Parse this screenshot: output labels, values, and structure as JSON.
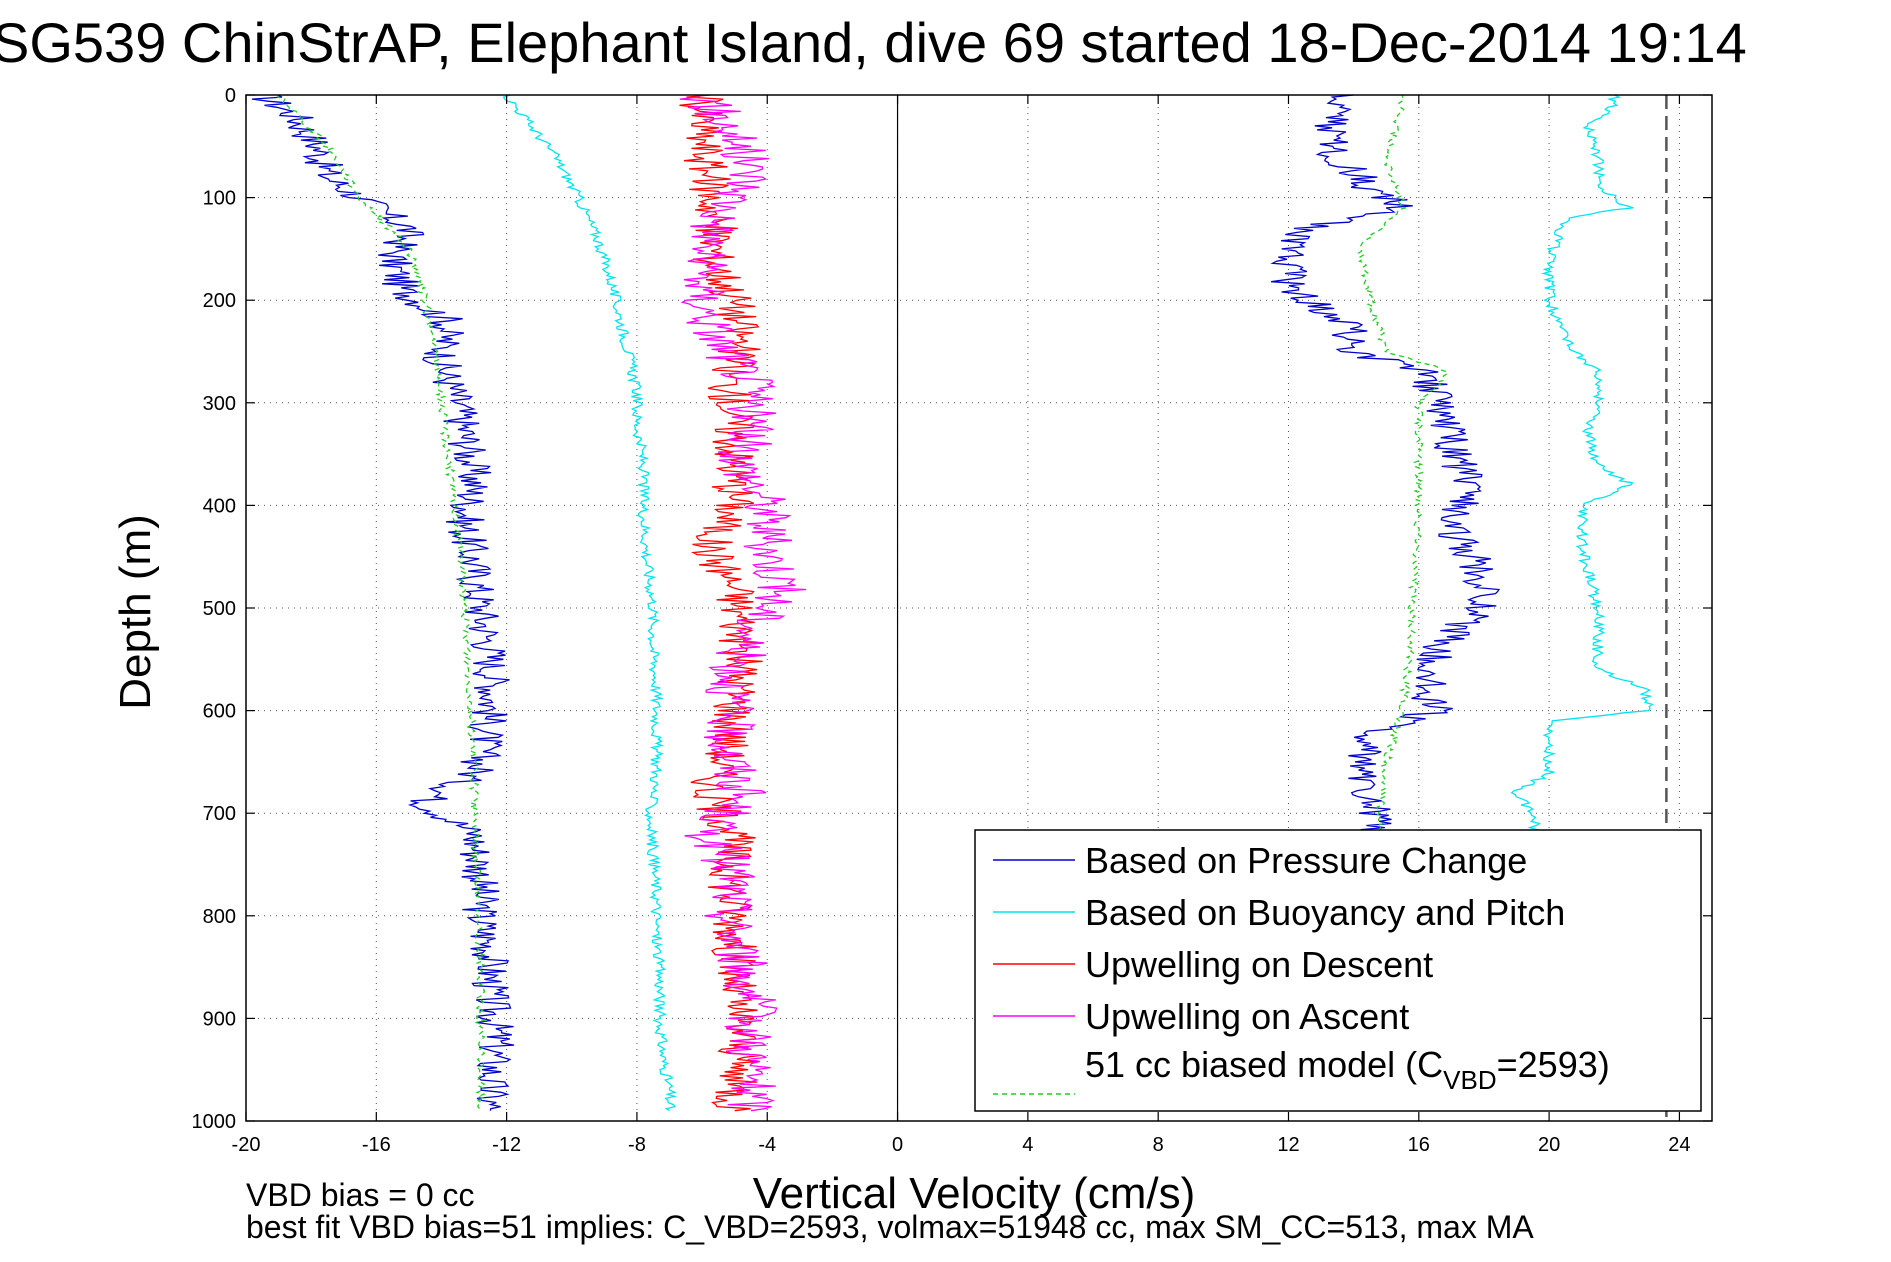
{
  "chart_data": {
    "type": "line",
    "title": "SG539 ChinStrAP, Elephant Island, dive 69 started 18-Dec-2014 19:14",
    "xlabel": "Vertical Velocity (cm/s)",
    "ylabel": "Depth (m)",
    "xlim": [
      -20,
      25
    ],
    "ylim": [
      0,
      1000
    ],
    "y_reversed": true,
    "x_ticks": [
      "-20",
      "-16",
      "-12",
      "-8",
      "-4",
      "0",
      "4",
      "8",
      "12",
      "16",
      "20",
      "24"
    ],
    "y_ticks": [
      "0",
      "100",
      "200",
      "300",
      "400",
      "500",
      "600",
      "700",
      "800",
      "900",
      "1000"
    ],
    "grid": true,
    "legend_position": "bottom-right",
    "reference_lines": {
      "zero_x": 0,
      "dashed_x": 23.6
    },
    "series": [
      {
        "name": "Based on Pressure Change",
        "color": "#0000cc",
        "style": "solid",
        "descent": {
          "depth": [
            0,
            20,
            50,
            80,
            100,
            130,
            160,
            190,
            220,
            260,
            300,
            340,
            380,
            420,
            460,
            500,
            540,
            580,
            620,
            660,
            690,
            720,
            760,
            800,
            840,
            880,
            920,
            960,
            990
          ],
          "velocity": [
            -19.5,
            -18.5,
            -17.8,
            -17.5,
            -16.5,
            -15.0,
            -15.5,
            -15.2,
            -13.8,
            -14.0,
            -13.5,
            -13.2,
            -13.0,
            -13.3,
            -13.0,
            -12.8,
            -12.5,
            -12.4,
            -12.6,
            -12.9,
            -14.5,
            -13.0,
            -12.8,
            -12.8,
            -12.5,
            -12.5,
            -12.3,
            -12.5,
            -12.5
          ]
        },
        "ascent": {
          "depth": [
            990,
            960,
            920,
            880,
            840,
            800,
            760,
            720,
            690,
            660,
            620,
            600,
            580,
            540,
            500,
            460,
            420,
            380,
            340,
            300,
            270,
            250,
            220,
            190,
            160,
            130,
            110,
            90,
            60,
            30,
            0
          ],
          "velocity": [
            15.5,
            15.5,
            15.5,
            15.3,
            15.2,
            15.0,
            14.8,
            14.8,
            14.5,
            14.3,
            14.5,
            16.5,
            16.2,
            16.5,
            18.0,
            17.8,
            17.0,
            17.5,
            17.0,
            16.5,
            16.2,
            14.0,
            13.8,
            12.0,
            12.0,
            12.5,
            15.5,
            14.5,
            13.5,
            13.2,
            14.0
          ]
        }
      },
      {
        "name": "Based on Buoyancy and Pitch",
        "color": "#00e5ee",
        "style": "solid",
        "descent": {
          "depth": [
            0,
            20,
            60,
            100,
            140,
            180,
            220,
            260,
            290,
            320,
            360,
            400,
            450,
            500,
            540,
            580,
            620,
            660,
            700,
            740,
            780,
            820,
            860,
            900,
            940,
            970,
            990
          ],
          "velocity": [
            -12.0,
            -11.5,
            -10.5,
            -9.8,
            -9.2,
            -8.8,
            -8.5,
            -8.2,
            -8.0,
            -8.0,
            -7.8,
            -7.8,
            -7.7,
            -7.5,
            -7.5,
            -7.4,
            -7.4,
            -7.4,
            -7.6,
            -7.5,
            -7.4,
            -7.4,
            -7.3,
            -7.3,
            -7.2,
            -7.0,
            -7.0
          ]
        },
        "ascent": {
          "depth": [
            990,
            950,
            900,
            850,
            800,
            760,
            720,
            700,
            680,
            660,
            640,
            610,
            600,
            580,
            560,
            500,
            440,
            400,
            380,
            360,
            330,
            300,
            270,
            240,
            200,
            160,
            120,
            110,
            90,
            60,
            30,
            10,
            0
          ],
          "velocity": [
            20.0,
            20.0,
            20.0,
            19.8,
            19.8,
            19.6,
            19.6,
            19.5,
            19.0,
            20.0,
            20.0,
            20.0,
            23.0,
            23.0,
            21.5,
            21.5,
            21.0,
            21.0,
            22.5,
            21.5,
            21.2,
            21.5,
            21.5,
            20.5,
            20.0,
            20.0,
            20.5,
            22.5,
            21.5,
            21.5,
            21.2,
            22.0,
            22.0
          ]
        }
      },
      {
        "name": "Upwelling on Descent",
        "color": "#ff0000",
        "style": "solid",
        "depth": [
          0,
          40,
          80,
          120,
          160,
          200,
          240,
          280,
          320,
          360,
          400,
          440,
          480,
          520,
          560,
          600,
          640,
          680,
          720,
          760,
          800,
          840,
          880,
          920,
          960,
          990
        ],
        "velocity": [
          -6.0,
          -6.0,
          -5.8,
          -5.6,
          -5.6,
          -5.0,
          -4.8,
          -5.2,
          -5.0,
          -5.0,
          -5.0,
          -5.8,
          -5.0,
          -4.8,
          -4.8,
          -5.0,
          -5.2,
          -5.8,
          -5.0,
          -5.2,
          -5.0,
          -5.0,
          -5.0,
          -4.8,
          -5.0,
          -5.0
        ]
      },
      {
        "name": "Upwelling on Ascent",
        "color": "#ff00ff",
        "style": "solid",
        "depth": [
          0,
          40,
          80,
          120,
          160,
          200,
          240,
          280,
          320,
          360,
          400,
          440,
          480,
          520,
          560,
          600,
          640,
          680,
          720,
          760,
          800,
          840,
          880,
          920,
          960,
          990
        ],
        "velocity": [
          -6.0,
          -5.0,
          -4.5,
          -5.5,
          -6.0,
          -6.0,
          -5.5,
          -4.5,
          -4.5,
          -4.8,
          -4.0,
          -4.0,
          -3.5,
          -4.5,
          -5.0,
          -5.2,
          -5.2,
          -4.8,
          -5.8,
          -5.0,
          -5.2,
          -4.8,
          -4.5,
          -4.5,
          -4.5,
          -4.5
        ]
      },
      {
        "name": "51 cc biased model (C",
        "name_sub": "VBD",
        "name_suffix": "=2593)",
        "color": "#22cc22",
        "style": "dashed",
        "descent": {
          "depth": [
            0,
            50,
            100,
            150,
            200,
            250,
            300,
            350,
            400,
            450,
            500,
            550,
            600,
            650,
            700,
            750,
            800,
            850,
            900,
            950,
            990
          ],
          "velocity": [
            -19.0,
            -17.5,
            -16.5,
            -15.0,
            -14.5,
            -14.2,
            -14.0,
            -13.8,
            -13.6,
            -13.4,
            -13.3,
            -13.2,
            -13.1,
            -13.0,
            -13.0,
            -12.9,
            -12.9,
            -12.8,
            -12.8,
            -12.8,
            -12.8
          ]
        },
        "ascent": {
          "depth": [
            990,
            950,
            900,
            850,
            800,
            750,
            700,
            650,
            600,
            550,
            500,
            450,
            400,
            350,
            300,
            270,
            250,
            200,
            150,
            110,
            60,
            10,
            0
          ],
          "velocity": [
            15.5,
            15.5,
            15.3,
            15.2,
            15.0,
            14.9,
            14.8,
            15.0,
            15.5,
            15.7,
            15.8,
            15.9,
            16.0,
            16.0,
            16.0,
            17.0,
            15.0,
            14.5,
            14.2,
            15.5,
            15.0,
            15.5,
            15.5
          ]
        }
      }
    ]
  },
  "notes": {
    "bias_line": "VBD bias = 0 cc",
    "fit_line": "best fit VBD bias=51 implies: C_VBD=2593, volmax=51948 cc, max SM_CC=513, max MA"
  }
}
